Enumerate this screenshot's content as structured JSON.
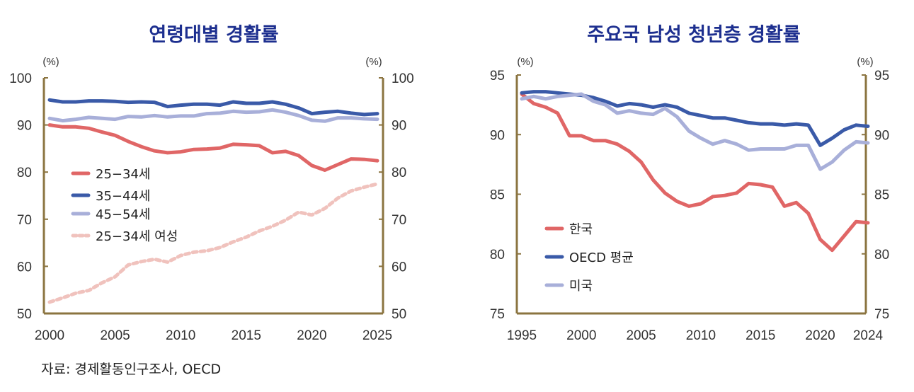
{
  "source": "자료: 경제활동인구조사, OECD",
  "colors": {
    "axis": "#8b7440",
    "title": "#1d2f8f"
  },
  "chart_data": [
    {
      "type": "line",
      "title": "연령대별 경활률",
      "unit_left": "(%)",
      "unit_right": "(%)",
      "ylim": [
        50,
        100
      ],
      "yticks": [
        50,
        60,
        70,
        80,
        90,
        100
      ],
      "xlim": [
        2000,
        2025
      ],
      "xticks": [
        2000,
        2005,
        2010,
        2015,
        2020,
        2025
      ],
      "dual_axis": true,
      "grid": false,
      "legend": "center-left",
      "x": [
        2000,
        2001,
        2002,
        2003,
        2004,
        2005,
        2006,
        2007,
        2008,
        2009,
        2010,
        2011,
        2012,
        2013,
        2014,
        2015,
        2016,
        2017,
        2018,
        2019,
        2020,
        2021,
        2022,
        2023,
        2024,
        2025
      ],
      "series": [
        {
          "name": "25−34세",
          "color": "#e06666",
          "dashed": false,
          "values": [
            90.0,
            89.6,
            89.6,
            89.3,
            88.5,
            87.8,
            86.5,
            85.4,
            84.5,
            84.1,
            84.3,
            84.8,
            84.9,
            85.1,
            85.9,
            85.8,
            85.6,
            84.1,
            84.4,
            83.5,
            81.4,
            80.4,
            81.6,
            82.8,
            82.7,
            82.4
          ]
        },
        {
          "name": "35−44세",
          "color": "#3a5aa8",
          "dashed": false,
          "values": [
            95.3,
            94.9,
            94.9,
            95.1,
            95.1,
            95.0,
            94.8,
            94.9,
            94.8,
            93.9,
            94.2,
            94.4,
            94.4,
            94.2,
            94.9,
            94.6,
            94.6,
            94.9,
            94.4,
            93.6,
            92.4,
            92.7,
            92.9,
            92.5,
            92.2,
            92.4
          ]
        },
        {
          "name": "45−54세",
          "color": "#a8afd9",
          "dashed": false,
          "values": [
            91.4,
            90.9,
            91.2,
            91.6,
            91.4,
            91.2,
            91.8,
            91.7,
            92.0,
            91.7,
            91.9,
            91.9,
            92.4,
            92.5,
            92.9,
            92.7,
            92.8,
            93.2,
            92.7,
            92.0,
            91.0,
            90.8,
            91.5,
            91.5,
            91.3,
            91.2
          ]
        },
        {
          "name": "25−34세 여성",
          "color": "#f0c2bd",
          "dashed": true,
          "values": [
            52.4,
            53.3,
            54.3,
            54.9,
            56.5,
            57.8,
            60.3,
            61.0,
            61.5,
            60.9,
            62.3,
            63.0,
            63.3,
            64.0,
            65.2,
            66.2,
            67.5,
            68.5,
            69.8,
            71.5,
            70.9,
            72.3,
            74.5,
            76.0,
            76.8,
            77.5
          ]
        }
      ]
    },
    {
      "type": "line",
      "title": "주요국 남성 청년층 경활률",
      "unit_left": "(%)",
      "unit_right": "(%)",
      "ylim": [
        75,
        95
      ],
      "yticks": [
        75,
        80,
        85,
        90,
        95
      ],
      "xlim": [
        1995,
        2024
      ],
      "xticks": [
        1995,
        2000,
        2005,
        2010,
        2015,
        2020,
        2024
      ],
      "dual_axis": true,
      "grid": false,
      "legend": "bottom-left",
      "x": [
        1995,
        1996,
        1997,
        1998,
        1999,
        2000,
        2001,
        2002,
        2003,
        2004,
        2005,
        2006,
        2007,
        2008,
        2009,
        2010,
        2011,
        2012,
        2013,
        2014,
        2015,
        2016,
        2017,
        2018,
        2019,
        2020,
        2021,
        2022,
        2023,
        2024
      ],
      "series": [
        {
          "name": "한국",
          "color": "#e06666",
          "dashed": false,
          "values": [
            93.4,
            92.6,
            92.3,
            91.8,
            89.9,
            89.9,
            89.5,
            89.5,
            89.2,
            88.6,
            87.7,
            86.2,
            85.1,
            84.4,
            84.0,
            84.2,
            84.8,
            84.9,
            85.1,
            85.9,
            85.8,
            85.6,
            84.0,
            84.3,
            83.4,
            81.2,
            80.3,
            81.5,
            82.7,
            82.6
          ]
        },
        {
          "name": "OECD 평균",
          "color": "#3a5aa8",
          "dashed": false,
          "values": [
            93.5,
            93.6,
            93.6,
            93.5,
            93.4,
            93.3,
            93.1,
            92.8,
            92.4,
            92.6,
            92.5,
            92.3,
            92.5,
            92.3,
            91.8,
            91.6,
            91.4,
            91.4,
            91.2,
            91.0,
            90.9,
            90.9,
            90.8,
            90.9,
            90.8,
            89.1,
            89.7,
            90.4,
            90.8,
            90.7
          ]
        },
        {
          "name": "미국",
          "color": "#a8afd9",
          "dashed": false,
          "values": [
            93.0,
            93.2,
            93.0,
            93.2,
            93.3,
            93.4,
            92.8,
            92.5,
            91.8,
            92.0,
            91.8,
            91.7,
            92.2,
            91.5,
            90.3,
            89.7,
            89.2,
            89.5,
            89.2,
            88.7,
            88.8,
            88.8,
            88.8,
            89.1,
            89.1,
            87.1,
            87.7,
            88.7,
            89.4,
            89.3
          ]
        }
      ]
    }
  ]
}
